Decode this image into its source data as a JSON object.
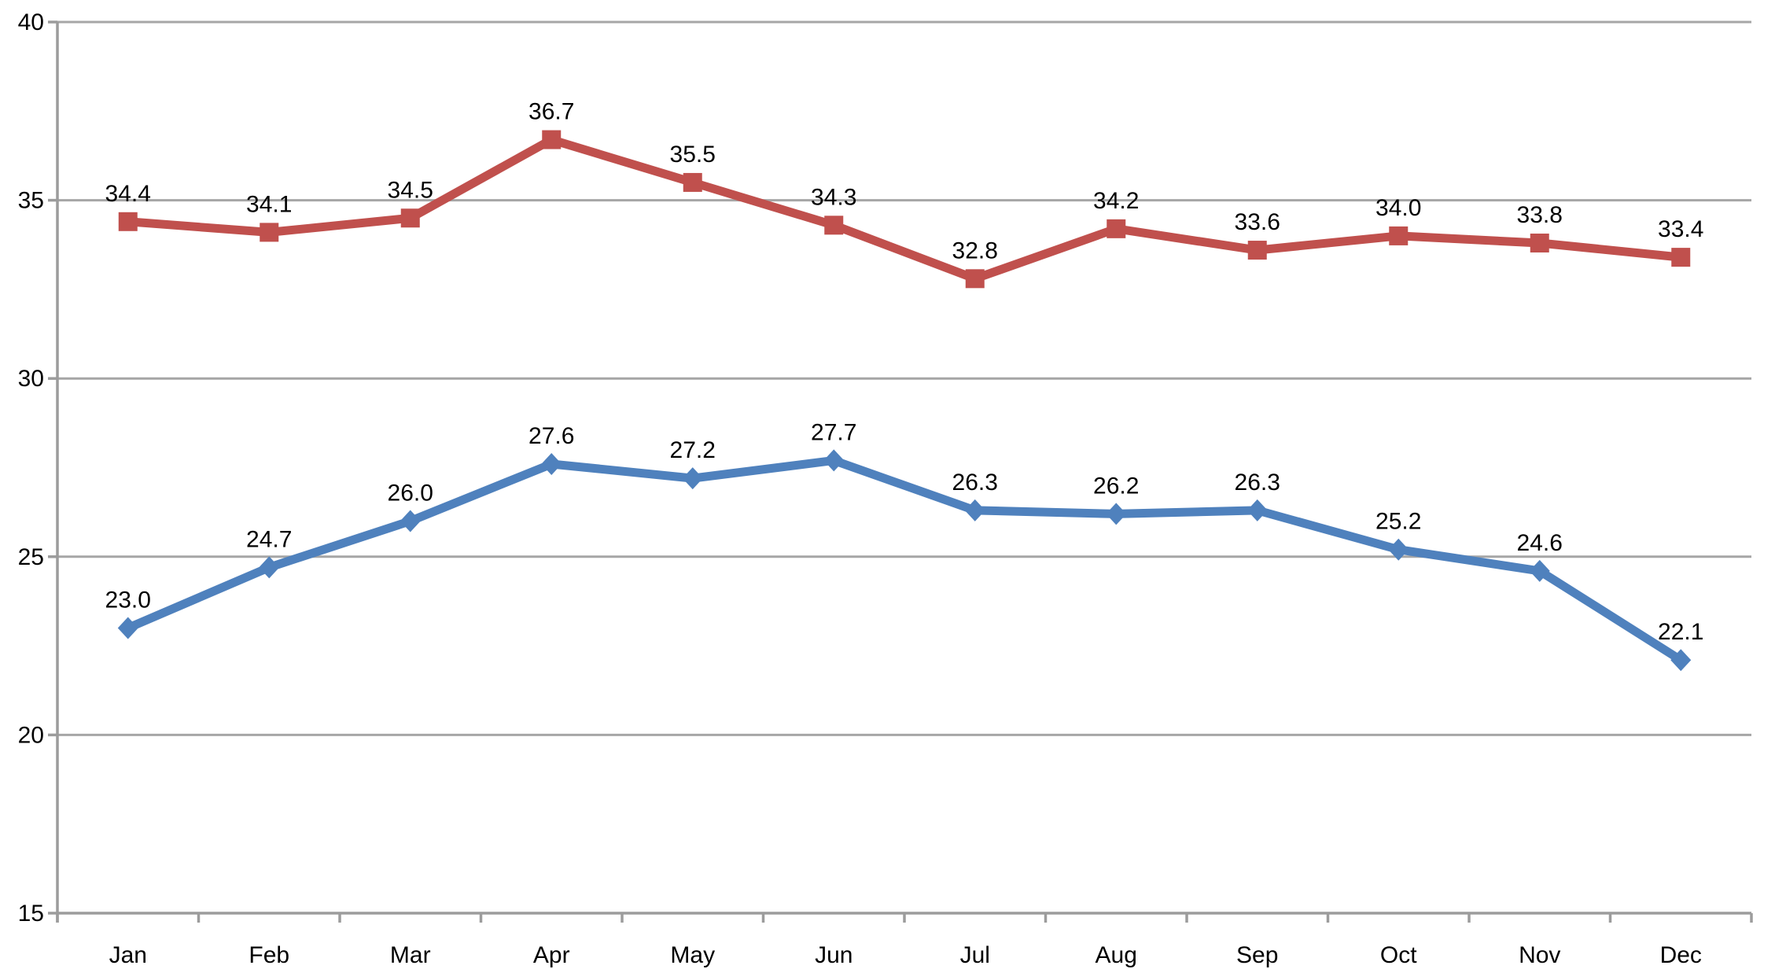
{
  "page": {
    "background_color": "#FFFFFF"
  },
  "chart_data": {
    "type": "line",
    "title": "",
    "xlabel": "",
    "ylabel": "",
    "categories": [
      "Jan",
      "Feb",
      "Mar",
      "Apr",
      "May",
      "Jun",
      "Jul",
      "Aug",
      "Sep",
      "Oct",
      "Nov",
      "Dec"
    ],
    "series": [
      {
        "name": "series-red-squares",
        "marker": "square",
        "color": "#C0504D",
        "values": [
          34.4,
          34.1,
          34.5,
          36.7,
          35.5,
          34.3,
          32.8,
          34.2,
          33.6,
          34.0,
          33.8,
          33.4
        ],
        "labels": [
          "34.4",
          "34.1",
          "34.5",
          "36.7",
          "35.5",
          "34.3",
          "32.8",
          "34.2",
          "33.6",
          "34.0",
          "33.8",
          "33.4"
        ]
      },
      {
        "name": "series-blue-diamonds",
        "marker": "diamond",
        "color": "#4F81BD",
        "values": [
          23.0,
          24.7,
          26.0,
          27.6,
          27.2,
          27.7,
          26.3,
          26.2,
          26.3,
          25.2,
          24.6,
          22.1
        ],
        "labels": [
          "23.0",
          "24.7",
          "26.0",
          "27.6",
          "27.2",
          "27.7",
          "26.3",
          "26.2",
          "26.3",
          "25.2",
          "24.6",
          "22.1"
        ]
      }
    ],
    "ylim": [
      15,
      40
    ],
    "yticks": [
      15,
      20,
      25,
      30,
      35,
      40
    ],
    "ytick_labels": [
      "15",
      "20",
      "25",
      "30",
      "35",
      "40"
    ],
    "grid": true,
    "legend": "none",
    "data_labels": true,
    "data_label_decimals": 1,
    "axis_color": "#9C9C9C",
    "gridline_color": "#A6A6A6",
    "text_color": "#000000"
  }
}
